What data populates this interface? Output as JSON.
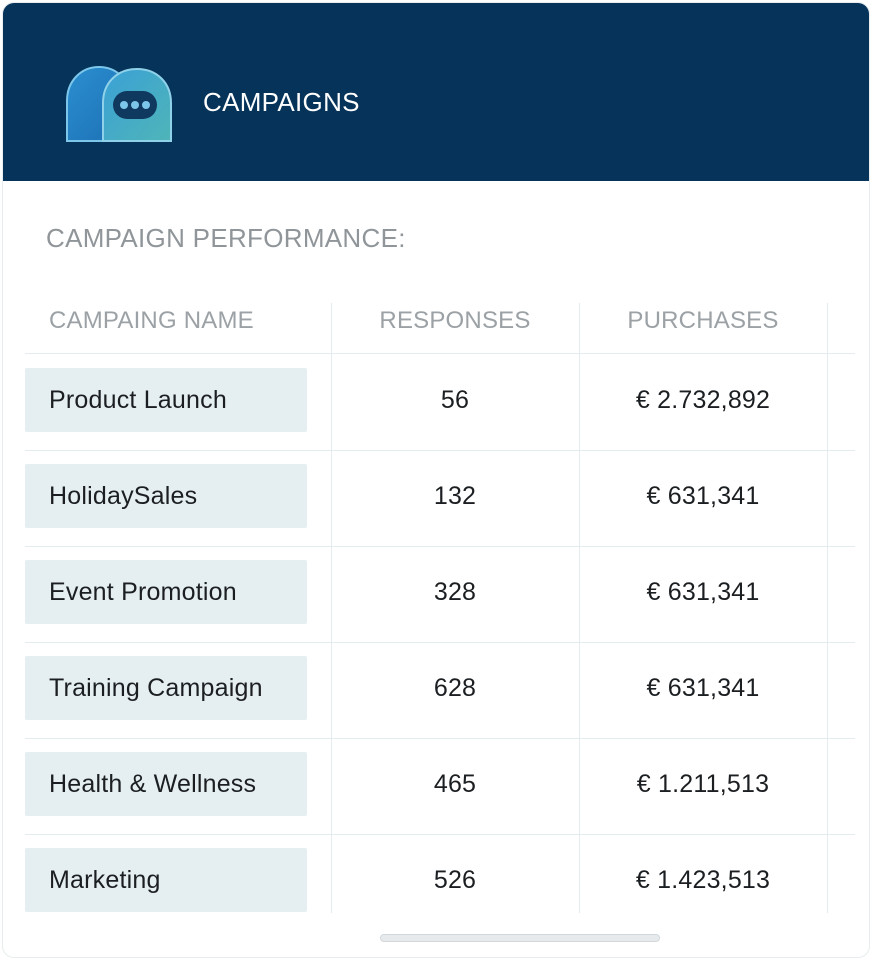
{
  "header": {
    "title": "CAMPAIGNS",
    "logo_icon": "chat-bubbles-icon",
    "background_color": "#063359"
  },
  "section": {
    "title": "CAMPAIGN PERFORMANCE:"
  },
  "table": {
    "columns": [
      "CAMPAING NAME",
      "RESPONSES",
      "PURCHASES"
    ],
    "rows": [
      {
        "name": "Product Launch",
        "responses": "56",
        "purchases": "€ 2.732,892"
      },
      {
        "name": "HolidaySales",
        "responses": "132",
        "purchases": "€ 631,341"
      },
      {
        "name": "Event Promotion",
        "responses": "328",
        "purchases": "€ 631,341"
      },
      {
        "name": "Training Campaign",
        "responses": "628",
        "purchases": "€ 631,341"
      },
      {
        "name": "Health & Wellness",
        "responses": "465",
        "purchases": "€ 1.211,513"
      },
      {
        "name": "Marketing",
        "responses": "526",
        "purchases": "€ 1.423,513"
      }
    ]
  }
}
